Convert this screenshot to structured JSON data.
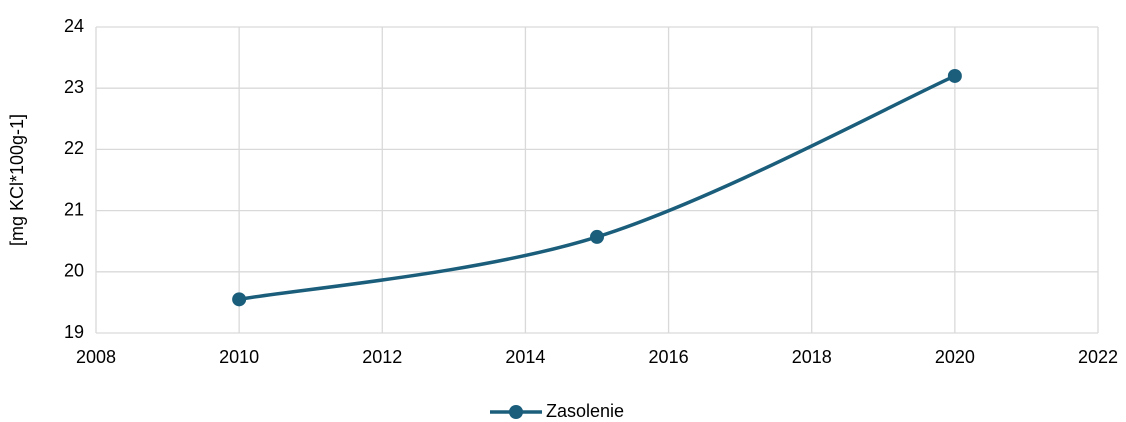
{
  "chart_data": {
    "type": "line",
    "y_label": "[mg KCl*100g-1]",
    "x": [
      2010,
      2015,
      2020
    ],
    "series": [
      {
        "name": "Zasolenie",
        "color": "#1b5e7b",
        "values": [
          19.55,
          20.57,
          23.2
        ]
      }
    ],
    "xlim": [
      2008,
      2022
    ],
    "xticks": [
      2008,
      2010,
      2012,
      2014,
      2016,
      2018,
      2020,
      2022
    ],
    "ylim": [
      19,
      24
    ],
    "yticks": [
      19,
      20,
      21,
      22,
      23,
      24
    ],
    "grid": true,
    "smooth": true,
    "legend": "bottom"
  }
}
